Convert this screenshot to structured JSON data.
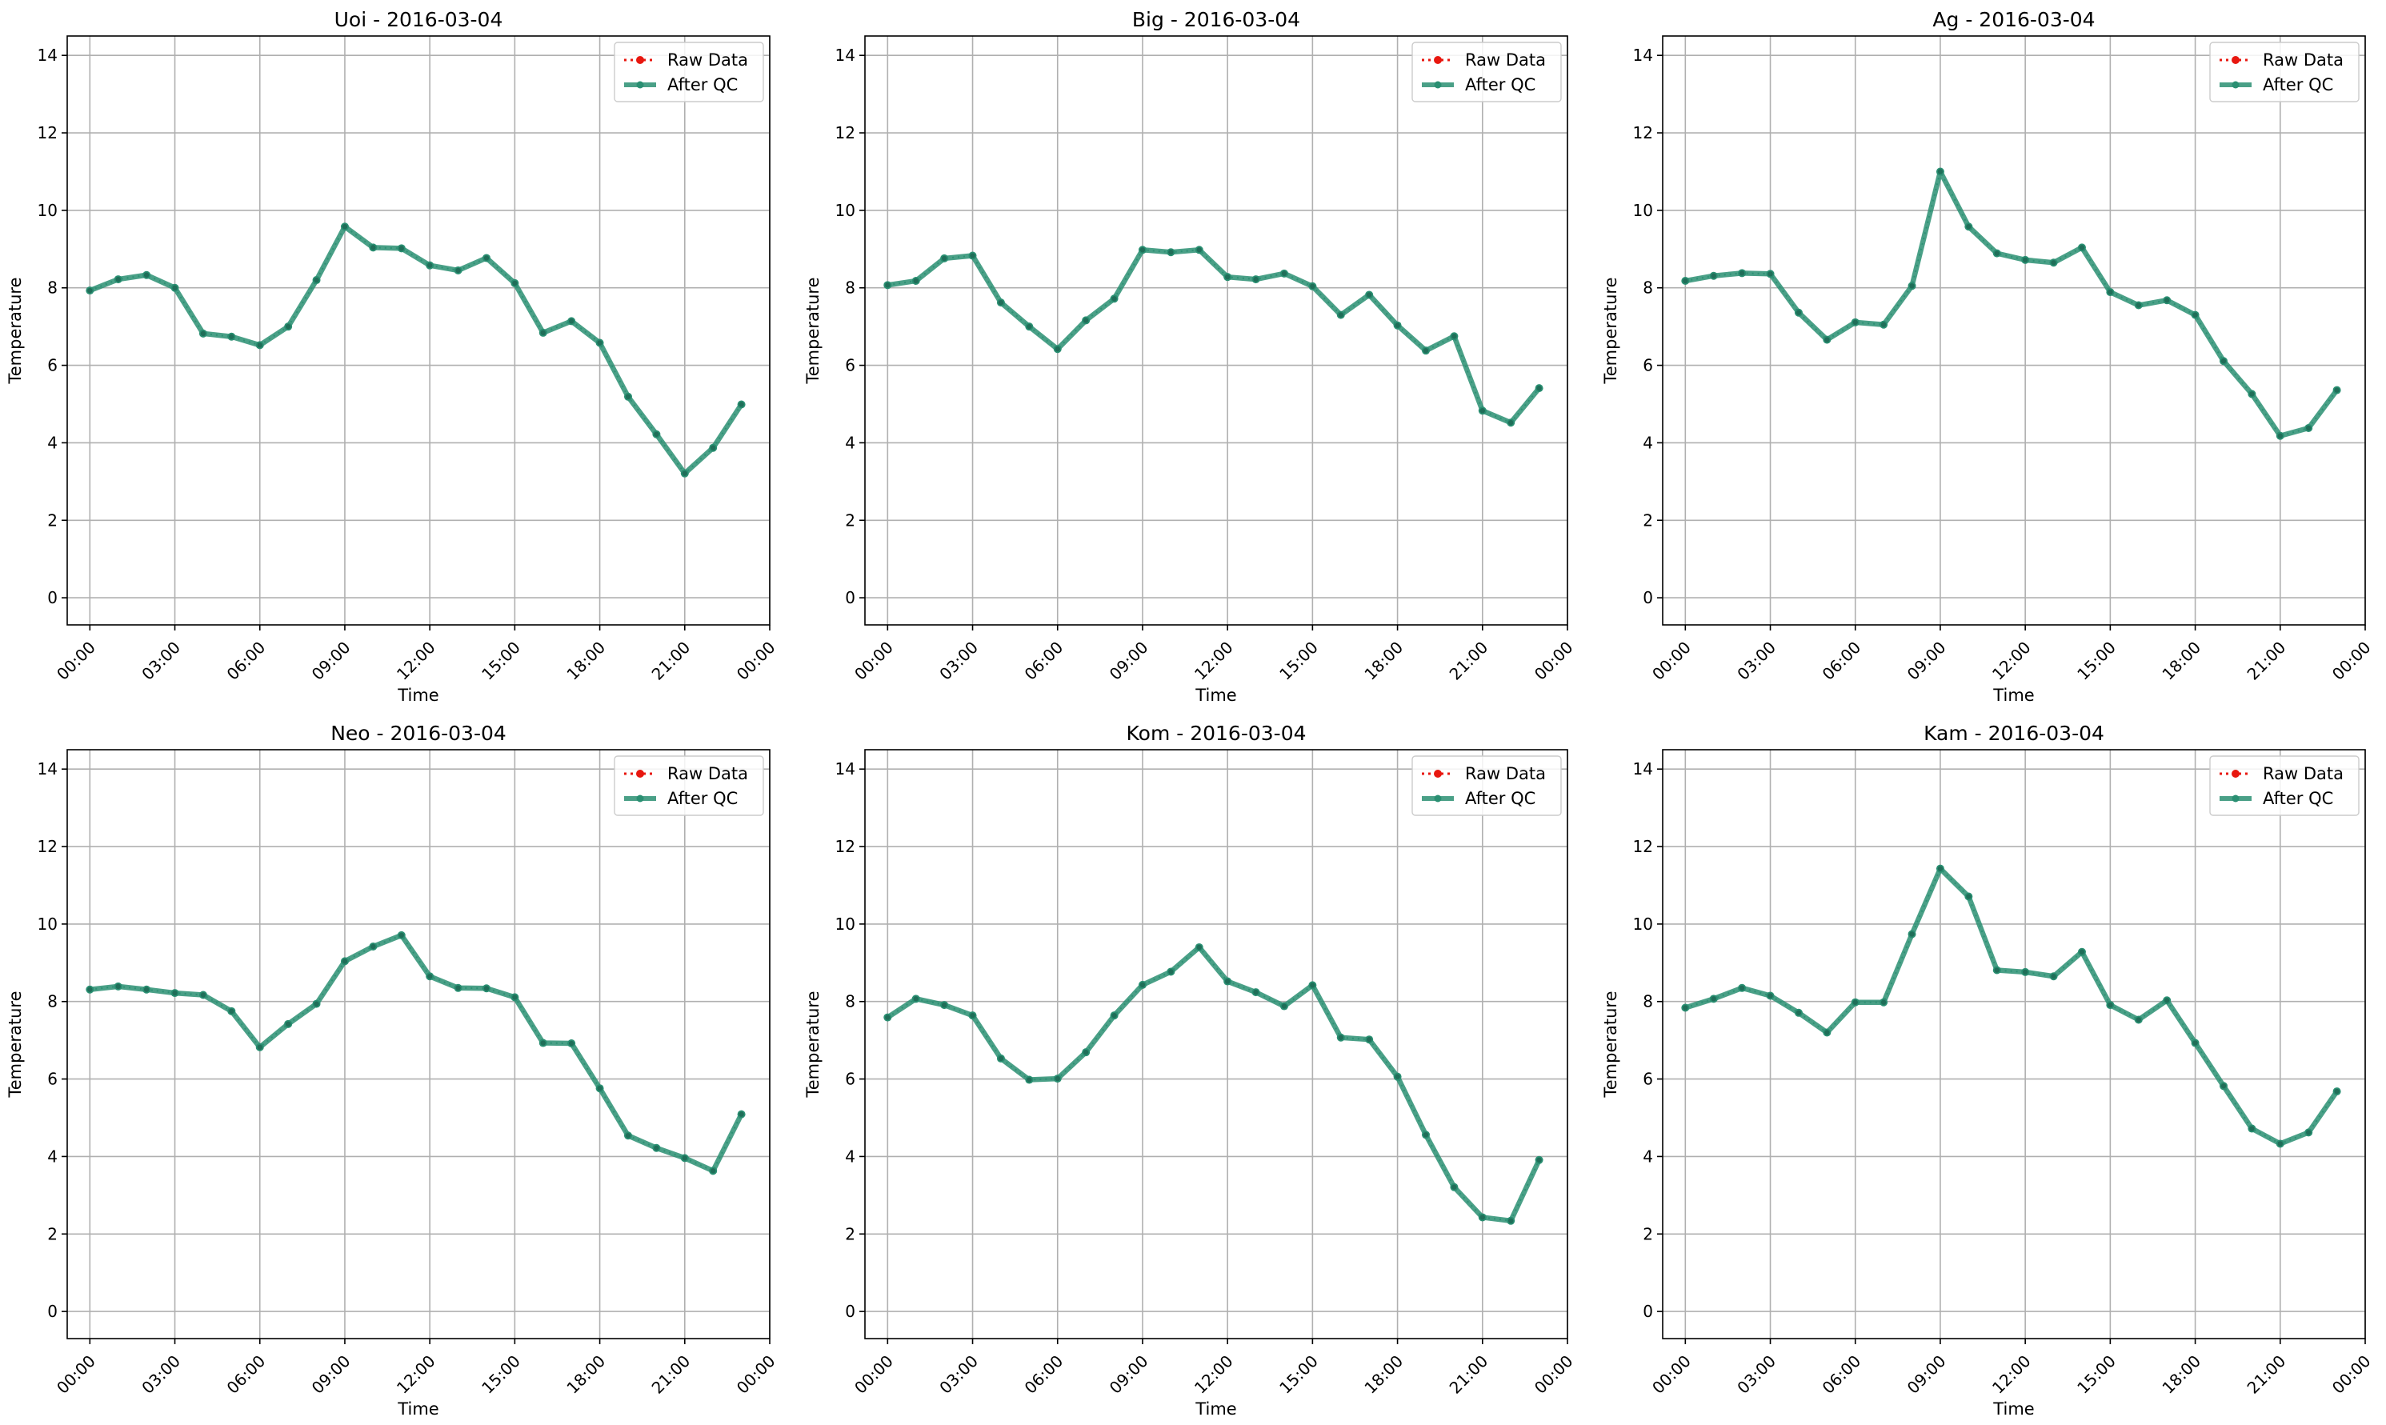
{
  "colors": {
    "raw": "#e8170f",
    "qc": "#2a8f72",
    "grid": "#b0b0b0",
    "axes": "#000000",
    "legend_border": "#cccccc"
  },
  "chart_data": [
    {
      "type": "line",
      "title": "Uoi - 2016-03-04",
      "xlabel": "Time",
      "ylabel": "Temperature",
      "x_ticklabels": [
        "00:00",
        "03:00",
        "06:00",
        "09:00",
        "12:00",
        "15:00",
        "18:00",
        "21:00",
        "00:00"
      ],
      "y_ticks": [
        0,
        2,
        4,
        6,
        8,
        10,
        12,
        14
      ],
      "ylim": [
        -0.7,
        14.5
      ],
      "grid": true,
      "legend_position": "top-right",
      "x": [
        "00:00",
        "01:00",
        "02:00",
        "03:00",
        "04:00",
        "05:00",
        "06:00",
        "07:00",
        "08:00",
        "09:00",
        "10:00",
        "11:00",
        "12:00",
        "13:00",
        "14:00",
        "15:00",
        "16:00",
        "17:00",
        "18:00",
        "19:00",
        "20:00",
        "21:00",
        "22:00",
        "23:00"
      ],
      "series": [
        {
          "name": "Raw Data",
          "values": [
            7.93,
            8.22,
            8.33,
            8.0,
            6.82,
            6.74,
            6.52,
            7.0,
            8.2,
            9.58,
            9.04,
            9.02,
            8.58,
            8.45,
            8.77,
            8.12,
            6.84,
            7.14,
            6.58,
            5.19,
            4.22,
            3.21,
            3.87,
            4.99
          ]
        },
        {
          "name": "After QC",
          "values": [
            7.93,
            8.22,
            8.33,
            8.0,
            6.82,
            6.74,
            6.52,
            7.0,
            8.2,
            9.58,
            9.04,
            9.02,
            8.58,
            8.45,
            8.77,
            8.12,
            6.84,
            7.14,
            6.58,
            5.19,
            4.22,
            3.21,
            3.87,
            4.99
          ]
        }
      ]
    },
    {
      "type": "line",
      "title": "Big - 2016-03-04",
      "xlabel": "Time",
      "ylabel": "Temperature",
      "x_ticklabels": [
        "00:00",
        "03:00",
        "06:00",
        "09:00",
        "12:00",
        "15:00",
        "18:00",
        "21:00",
        "00:00"
      ],
      "y_ticks": [
        0,
        2,
        4,
        6,
        8,
        10,
        12,
        14
      ],
      "ylim": [
        -0.7,
        14.5
      ],
      "grid": true,
      "legend_position": "top-right",
      "x": [
        "00:00",
        "01:00",
        "02:00",
        "03:00",
        "04:00",
        "05:00",
        "06:00",
        "07:00",
        "08:00",
        "09:00",
        "10:00",
        "11:00",
        "12:00",
        "13:00",
        "14:00",
        "15:00",
        "16:00",
        "17:00",
        "18:00",
        "19:00",
        "20:00",
        "21:00",
        "22:00",
        "23:00"
      ],
      "series": [
        {
          "name": "Raw Data",
          "values": [
            8.07,
            8.18,
            8.76,
            8.83,
            7.62,
            7.0,
            6.42,
            7.16,
            7.72,
            8.98,
            8.92,
            8.98,
            8.28,
            8.22,
            8.37,
            8.04,
            7.3,
            7.82,
            7.03,
            6.38,
            6.75,
            4.83,
            4.52,
            5.41
          ]
        },
        {
          "name": "After QC",
          "values": [
            8.07,
            8.18,
            8.76,
            8.83,
            7.62,
            7.0,
            6.42,
            7.16,
            7.72,
            8.98,
            8.92,
            8.98,
            8.28,
            8.22,
            8.37,
            8.04,
            7.3,
            7.82,
            7.03,
            6.38,
            6.75,
            4.83,
            4.52,
            5.41
          ]
        }
      ]
    },
    {
      "type": "line",
      "title": "Ag - 2016-03-04",
      "xlabel": "Time",
      "ylabel": "Temperature",
      "x_ticklabels": [
        "00:00",
        "03:00",
        "06:00",
        "09:00",
        "12:00",
        "15:00",
        "18:00",
        "21:00",
        "00:00"
      ],
      "y_ticks": [
        0,
        2,
        4,
        6,
        8,
        10,
        12,
        14
      ],
      "ylim": [
        -0.7,
        14.5
      ],
      "grid": true,
      "legend_position": "top-right",
      "x": [
        "00:00",
        "01:00",
        "02:00",
        "03:00",
        "04:00",
        "05:00",
        "06:00",
        "07:00",
        "08:00",
        "09:00",
        "10:00",
        "11:00",
        "12:00",
        "13:00",
        "14:00",
        "15:00",
        "16:00",
        "17:00",
        "18:00",
        "19:00",
        "20:00",
        "21:00",
        "22:00",
        "23:00"
      ],
      "series": [
        {
          "name": "Raw Data",
          "values": [
            8.18,
            8.31,
            8.38,
            8.36,
            7.36,
            6.66,
            7.11,
            7.05,
            8.05,
            11.0,
            9.58,
            8.89,
            8.72,
            8.65,
            9.04,
            7.89,
            7.55,
            7.68,
            7.3,
            6.11,
            5.26,
            4.18,
            4.38,
            5.36
          ]
        },
        {
          "name": "After QC",
          "values": [
            8.18,
            8.31,
            8.38,
            8.36,
            7.36,
            6.66,
            7.11,
            7.05,
            8.05,
            11.0,
            9.58,
            8.89,
            8.72,
            8.65,
            9.04,
            7.89,
            7.55,
            7.68,
            7.3,
            6.11,
            5.26,
            4.18,
            4.38,
            5.36
          ]
        }
      ]
    },
    {
      "type": "line",
      "title": "Neo - 2016-03-04",
      "xlabel": "Time",
      "ylabel": "Temperature",
      "x_ticklabels": [
        "00:00",
        "03:00",
        "06:00",
        "09:00",
        "12:00",
        "15:00",
        "18:00",
        "21:00",
        "00:00"
      ],
      "y_ticks": [
        0,
        2,
        4,
        6,
        8,
        10,
        12,
        14
      ],
      "ylim": [
        -0.7,
        14.5
      ],
      "grid": true,
      "legend_position": "top-right",
      "x": [
        "00:00",
        "01:00",
        "02:00",
        "03:00",
        "04:00",
        "05:00",
        "06:00",
        "07:00",
        "08:00",
        "09:00",
        "10:00",
        "11:00",
        "12:00",
        "13:00",
        "14:00",
        "15:00",
        "16:00",
        "17:00",
        "18:00",
        "19:00",
        "20:00",
        "21:00",
        "22:00",
        "23:00"
      ],
      "series": [
        {
          "name": "Raw Data",
          "values": [
            8.31,
            8.39,
            8.31,
            8.22,
            8.17,
            7.75,
            6.82,
            7.42,
            7.94,
            9.04,
            9.42,
            9.71,
            8.65,
            8.35,
            8.34,
            8.11,
            6.93,
            6.92,
            5.76,
            4.54,
            4.22,
            3.96,
            3.63,
            5.09
          ]
        },
        {
          "name": "After QC",
          "values": [
            8.31,
            8.39,
            8.31,
            8.22,
            8.17,
            7.75,
            6.82,
            7.42,
            7.94,
            9.04,
            9.42,
            9.71,
            8.65,
            8.35,
            8.34,
            8.11,
            6.93,
            6.92,
            5.76,
            4.54,
            4.22,
            3.96,
            3.63,
            5.09
          ]
        }
      ]
    },
    {
      "type": "line",
      "title": "Kom - 2016-03-04",
      "xlabel": "Time",
      "ylabel": "Temperature",
      "x_ticklabels": [
        "00:00",
        "03:00",
        "06:00",
        "09:00",
        "12:00",
        "15:00",
        "18:00",
        "21:00",
        "00:00"
      ],
      "y_ticks": [
        0,
        2,
        4,
        6,
        8,
        10,
        12,
        14
      ],
      "ylim": [
        -0.7,
        14.5
      ],
      "grid": true,
      "legend_position": "top-right",
      "x": [
        "00:00",
        "01:00",
        "02:00",
        "03:00",
        "04:00",
        "05:00",
        "06:00",
        "07:00",
        "08:00",
        "09:00",
        "10:00",
        "11:00",
        "12:00",
        "13:00",
        "14:00",
        "15:00",
        "16:00",
        "17:00",
        "18:00",
        "19:00",
        "20:00",
        "21:00",
        "22:00",
        "23:00"
      ],
      "series": [
        {
          "name": "Raw Data",
          "values": [
            7.59,
            8.07,
            7.91,
            7.64,
            6.53,
            5.98,
            6.01,
            6.69,
            7.64,
            8.43,
            8.77,
            9.4,
            8.52,
            8.24,
            7.88,
            8.42,
            7.07,
            7.02,
            6.06,
            4.56,
            3.21,
            2.43,
            2.34,
            3.91
          ]
        },
        {
          "name": "After QC",
          "values": [
            7.59,
            8.07,
            7.91,
            7.64,
            6.53,
            5.98,
            6.01,
            6.69,
            7.64,
            8.43,
            8.77,
            9.4,
            8.52,
            8.24,
            7.88,
            8.42,
            7.07,
            7.02,
            6.06,
            4.56,
            3.21,
            2.43,
            2.34,
            3.91
          ]
        }
      ]
    },
    {
      "type": "line",
      "title": "Kam - 2016-03-04",
      "xlabel": "Time",
      "ylabel": "Temperature",
      "x_ticklabels": [
        "00:00",
        "03:00",
        "06:00",
        "09:00",
        "12:00",
        "15:00",
        "18:00",
        "21:00",
        "00:00"
      ],
      "y_ticks": [
        0,
        2,
        4,
        6,
        8,
        10,
        12,
        14
      ],
      "ylim": [
        -0.7,
        14.5
      ],
      "grid": true,
      "legend_position": "top-right",
      "x": [
        "00:00",
        "01:00",
        "02:00",
        "03:00",
        "04:00",
        "05:00",
        "06:00",
        "07:00",
        "08:00",
        "09:00",
        "10:00",
        "11:00",
        "12:00",
        "13:00",
        "14:00",
        "15:00",
        "16:00",
        "17:00",
        "18:00",
        "19:00",
        "20:00",
        "21:00",
        "22:00",
        "23:00"
      ],
      "series": [
        {
          "name": "Raw Data",
          "values": [
            7.84,
            8.07,
            8.35,
            8.15,
            7.71,
            7.2,
            7.98,
            7.98,
            9.74,
            11.43,
            10.71,
            8.81,
            8.76,
            8.65,
            9.28,
            7.91,
            7.53,
            8.03,
            6.93,
            5.82,
            4.72,
            4.33,
            4.62,
            5.68
          ]
        },
        {
          "name": "After QC",
          "values": [
            7.84,
            8.07,
            8.35,
            8.15,
            7.71,
            7.2,
            7.98,
            7.98,
            9.74,
            11.43,
            10.71,
            8.81,
            8.76,
            8.65,
            9.28,
            7.91,
            7.53,
            8.03,
            6.93,
            5.82,
            4.72,
            4.33,
            4.62,
            5.68
          ]
        }
      ]
    }
  ]
}
